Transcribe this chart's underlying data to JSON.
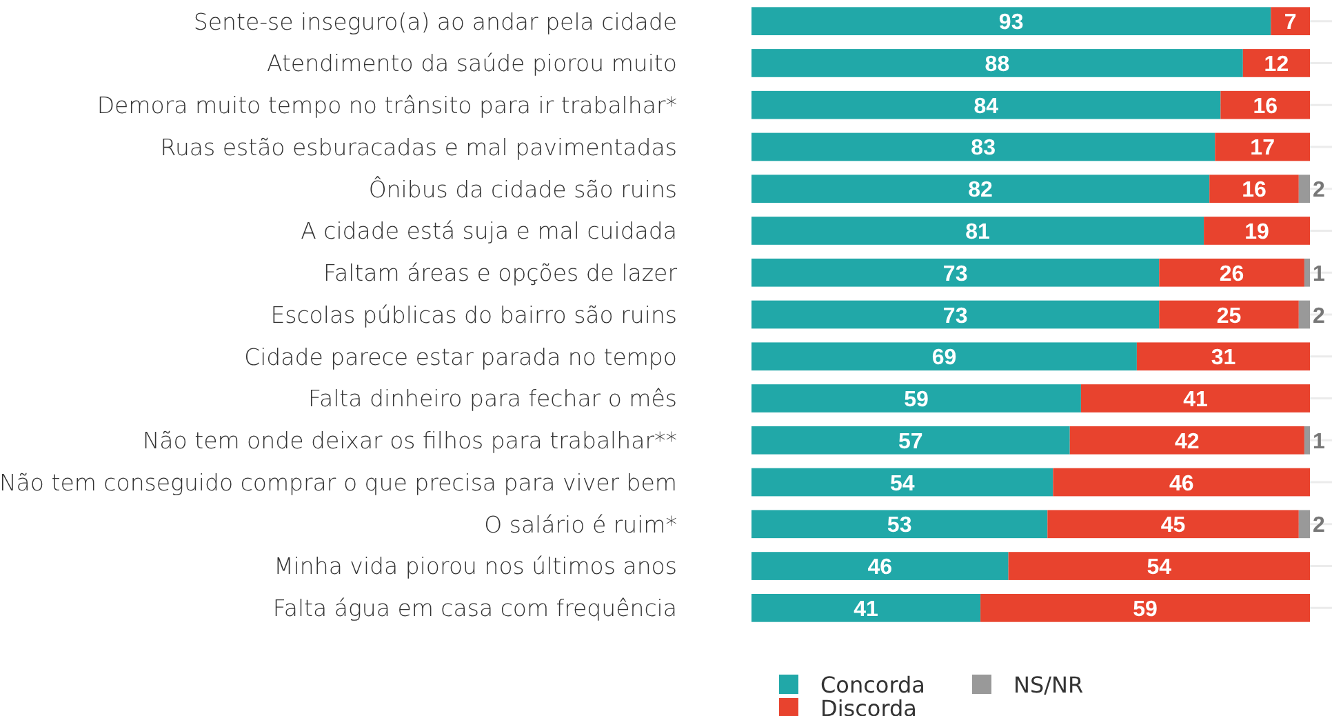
{
  "chart_data": {
    "type": "bar",
    "orientation": "horizontal",
    "stacked": true,
    "data_labels": true,
    "grid": "y",
    "legend": "bottom",
    "categories": [
      "Sente-se inseguro(a) ao andar pela cidade",
      "Atendimento da saúde piorou muito",
      "Demora muito tempo no trânsito para ir trabalhar*",
      "Ruas estão esburacadas e mal pavimentadas",
      "Ônibus da cidade são ruins",
      "A cidade está suja e mal cuidada",
      "Faltam áreas e opções de lazer",
      "Escolas públicas do bairro são ruins",
      "Cidade parece estar parada no tempo",
      "Falta dinheiro para fechar o mês",
      "Não tem onde deixar os filhos para trabalhar**",
      "Não tem conseguido comprar o que precisa para viver bem",
      "O salário é ruim*",
      "Minha vida piorou nos últimos anos",
      "Falta água em casa com frequência"
    ],
    "series": [
      {
        "name": "Concorda",
        "color": "#21a8a8",
        "values": [
          93,
          88,
          84,
          83,
          82,
          81,
          73,
          73,
          69,
          59,
          57,
          54,
          53,
          46,
          41
        ]
      },
      {
        "name": "Discorda",
        "color": "#e8432e",
        "values": [
          7,
          12,
          16,
          17,
          16,
          19,
          26,
          25,
          31,
          41,
          42,
          46,
          45,
          54,
          59
        ]
      },
      {
        "name": "NS/NR",
        "color": "#999999",
        "values": [
          0,
          0,
          0,
          0,
          2,
          0,
          1,
          2,
          0,
          0,
          1,
          0,
          2,
          0,
          0
        ],
        "value_labels": [
          null,
          null,
          null,
          null,
          "2",
          null,
          "1",
          "2",
          null,
          null,
          "1",
          null,
          "2",
          null,
          null
        ]
      }
    ]
  }
}
